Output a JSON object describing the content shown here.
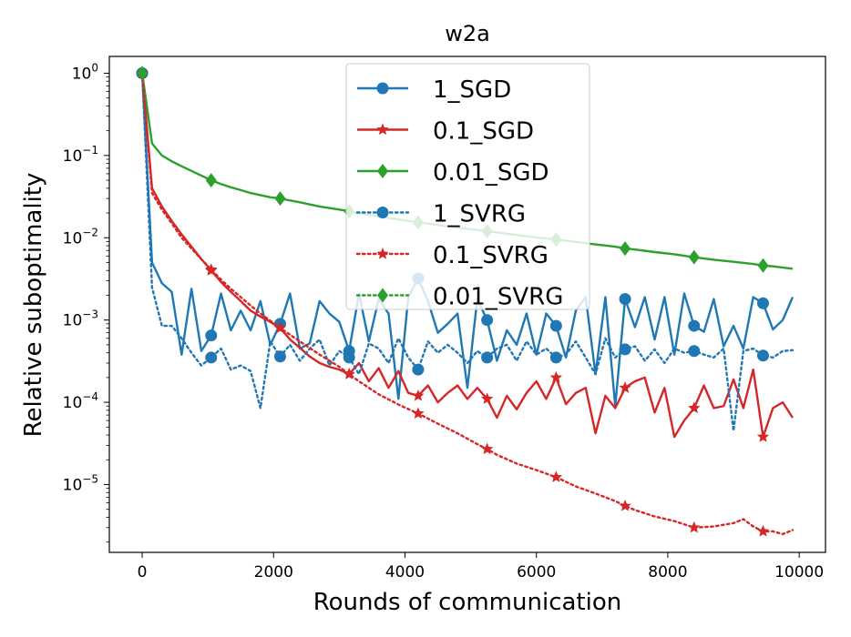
{
  "chart_data": {
    "type": "line",
    "title": "w2a",
    "xlabel": "Rounds of communication",
    "ylabel": "Relative suboptimality",
    "xscale": "linear",
    "yscale": "log",
    "xlim": [
      -500,
      10400
    ],
    "ylim": [
      1.5e-06,
      1.6
    ],
    "xticks": [
      0,
      2000,
      4000,
      6000,
      8000,
      10000
    ],
    "xtick_labels": [
      "0",
      "2000",
      "4000",
      "6000",
      "8000",
      "10000"
    ],
    "yticks": [
      {
        "value": 1,
        "base": "10",
        "exp": "0"
      },
      {
        "value": 0.1,
        "base": "10",
        "exp": "−1"
      },
      {
        "value": 0.01,
        "base": "10",
        "exp": "−2"
      },
      {
        "value": 0.001,
        "base": "10",
        "exp": "−3"
      },
      {
        "value": 0.0001,
        "base": "10",
        "exp": "−4"
      },
      {
        "value": 1e-05,
        "base": "10",
        "exp": "−5"
      }
    ],
    "legend_position": "upper-center",
    "series": [
      {
        "name": "1_SGD",
        "color": "#1f77b4",
        "style": "solid",
        "marker": "circle",
        "x": [
          0,
          150,
          300,
          450,
          600,
          750,
          900,
          1050,
          1200,
          1350,
          1500,
          1650,
          1800,
          1950,
          2100,
          2250,
          2400,
          2550,
          2700,
          2850,
          3000,
          3150,
          3300,
          3450,
          3600,
          3750,
          3900,
          4050,
          4200,
          4350,
          4500,
          4650,
          4800,
          4950,
          5100,
          5250,
          5400,
          5550,
          5700,
          5850,
          6000,
          6150,
          6300,
          6450,
          6600,
          6750,
          6900,
          7050,
          7200,
          7350,
          7500,
          7650,
          7800,
          7950,
          8100,
          8250,
          8400,
          8550,
          8700,
          8850,
          9000,
          9150,
          9300,
          9450,
          9600,
          9750,
          9900
        ],
        "y": [
          1,
          0.005,
          0.0028,
          0.0022,
          0.00038,
          0.0024,
          0.00042,
          0.00065,
          0.0021,
          0.00075,
          0.0013,
          0.00075,
          0.0017,
          0.0005,
          0.0009,
          0.0021,
          0.00045,
          0.00052,
          0.0017,
          0.0012,
          0.00095,
          0.00042,
          0.0021,
          0.00055,
          0.0018,
          0.0012,
          0.00011,
          0.0019,
          0.0032,
          0.0017,
          0.0007,
          0.0009,
          0.0012,
          0.00015,
          0.0018,
          0.001,
          0.00032,
          0.00075,
          0.0005,
          0.0012,
          0.00038,
          0.0012,
          0.00085,
          0.00035,
          0.0013,
          0.0019,
          0.00022,
          0.0019,
          9e-05,
          0.0018,
          0.00082,
          0.0019,
          0.00058,
          0.0019,
          0.00038,
          0.0021,
          0.00085,
          0.00072,
          0.0018,
          0.00048,
          0.00085,
          0.00045,
          0.0019,
          0.0016,
          0.00077,
          0.001,
          0.0019
        ],
        "marker_x": [
          0,
          1050,
          2100,
          3150,
          4200,
          5250,
          6300,
          7350,
          8400,
          9450
        ]
      },
      {
        "name": "0.1_SGD",
        "color": "#d62728",
        "style": "solid",
        "marker": "star",
        "x": [
          0,
          150,
          300,
          450,
          600,
          750,
          900,
          1050,
          1200,
          1350,
          1500,
          1650,
          1800,
          1950,
          2100,
          2250,
          2400,
          2550,
          2700,
          2850,
          3000,
          3150,
          3300,
          3450,
          3600,
          3750,
          3900,
          4050,
          4200,
          4350,
          4500,
          4650,
          4800,
          4950,
          5100,
          5250,
          5400,
          5550,
          5700,
          5850,
          6000,
          6150,
          6300,
          6450,
          6600,
          6750,
          6900,
          7050,
          7200,
          7350,
          7500,
          7650,
          7800,
          7950,
          8100,
          8250,
          8400,
          8550,
          8700,
          8850,
          9000,
          9150,
          9300,
          9450,
          9600,
          9750,
          9900
        ],
        "y": [
          1,
          0.04,
          0.024,
          0.016,
          0.011,
          0.0078,
          0.0055,
          0.004,
          0.0029,
          0.0022,
          0.0017,
          0.0013,
          0.0011,
          0.00095,
          0.0008,
          0.00058,
          0.00046,
          0.00036,
          0.0003,
          0.00027,
          0.00025,
          0.00022,
          0.0003,
          0.00018,
          0.00026,
          0.00015,
          0.00024,
          0.00013,
          0.00012,
          0.00016,
          0.0001,
          0.00013,
          0.00016,
          0.00011,
          0.00015,
          0.00011,
          6.5e-05,
          0.00012,
          8.2e-05,
          0.00013,
          0.00018,
          0.00011,
          0.0002,
          9.5e-05,
          0.00013,
          0.00015,
          4.2e-05,
          0.00012,
          8.5e-05,
          0.00015,
          0.00018,
          0.0002,
          7.5e-05,
          0.00015,
          3.8e-05,
          6e-05,
          8.5e-05,
          0.00016,
          8.5e-05,
          9e-05,
          0.00019,
          8.5e-05,
          0.00025,
          3.8e-05,
          8.5e-05,
          0.0001,
          6.5e-05
        ],
        "marker_x": [
          0,
          1050,
          2100,
          3150,
          4200,
          5250,
          6300,
          7350,
          8400,
          9450
        ]
      },
      {
        "name": "0.01_SGD",
        "color": "#2ca02c",
        "style": "solid",
        "marker": "diamond",
        "x": [
          0,
          150,
          300,
          450,
          600,
          750,
          900,
          1050,
          1200,
          1350,
          1500,
          1650,
          1800,
          1950,
          2100,
          2400,
          2700,
          3000,
          3150,
          3300,
          3600,
          3900,
          4200,
          4500,
          4800,
          5100,
          5250,
          5400,
          5700,
          6000,
          6300,
          6600,
          6900,
          7200,
          7350,
          7500,
          7800,
          8100,
          8400,
          8700,
          9000,
          9300,
          9450,
          9600,
          9900
        ],
        "y": [
          1,
          0.14,
          0.1,
          0.085,
          0.074,
          0.065,
          0.057,
          0.05,
          0.045,
          0.041,
          0.038,
          0.035,
          0.033,
          0.031,
          0.03,
          0.027,
          0.024,
          0.022,
          0.021,
          0.0199,
          0.0182,
          0.0167,
          0.0154,
          0.0143,
          0.0133,
          0.0124,
          0.012,
          0.0116,
          0.0108,
          0.0101,
          0.0095,
          0.0089,
          0.0083,
          0.0078,
          0.0074,
          0.0072,
          0.0067,
          0.0063,
          0.0058,
          0.0054,
          0.0051,
          0.0048,
          0.0046,
          0.0045,
          0.0042
        ],
        "marker_x": [
          0,
          1050,
          2100,
          3150,
          4200,
          5250,
          6300,
          7350,
          8400,
          9450
        ]
      },
      {
        "name": "1_SVRG",
        "color": "#1f77b4",
        "style": "dotted",
        "marker": "circle",
        "x": [
          0,
          150,
          300,
          450,
          600,
          750,
          900,
          1050,
          1200,
          1350,
          1500,
          1650,
          1800,
          1950,
          2100,
          2250,
          2400,
          2550,
          2700,
          2850,
          3000,
          3150,
          3300,
          3450,
          3600,
          3750,
          3900,
          4050,
          4200,
          4350,
          4500,
          4650,
          4800,
          4950,
          5100,
          5250,
          5400,
          5550,
          5700,
          5850,
          6000,
          6150,
          6300,
          6450,
          6600,
          6750,
          6900,
          7050,
          7200,
          7350,
          7500,
          7650,
          7800,
          7950,
          8100,
          8250,
          8400,
          8550,
          8700,
          8850,
          9000,
          9150,
          9300,
          9450,
          9600,
          9750,
          9900
        ],
        "y": [
          1,
          0.0025,
          0.00085,
          0.00085,
          0.0006,
          0.0004,
          0.00028,
          0.00035,
          0.00045,
          0.00025,
          0.00028,
          0.00024,
          8.5e-05,
          0.00055,
          0.00036,
          0.0005,
          0.00032,
          0.00045,
          0.00058,
          0.00028,
          0.00042,
          0.00035,
          0.00022,
          0.00052,
          0.00045,
          0.0003,
          0.0006,
          0.00035,
          0.00025,
          0.00055,
          0.0004,
          0.0005,
          0.0004,
          0.0003,
          0.00042,
          0.00035,
          0.00045,
          0.0005,
          0.00032,
          0.00055,
          0.00038,
          0.00045,
          0.00035,
          0.00038,
          0.00055,
          0.00035,
          0.00022,
          0.0006,
          0.00035,
          0.00044,
          0.00048,
          0.00032,
          0.00044,
          0.0003,
          0.00045,
          0.0004,
          0.00042,
          0.00038,
          0.00035,
          0.00045,
          4.5e-05,
          0.00042,
          0.00045,
          0.00037,
          0.00035,
          0.00042,
          0.00043
        ],
        "marker_x": [
          0,
          1050,
          2100,
          3150,
          4200,
          5250,
          6300,
          7350,
          8400,
          9450
        ]
      },
      {
        "name": "0.1_SVRG",
        "color": "#d62728",
        "style": "dotted",
        "marker": "star",
        "x": [
          0,
          150,
          300,
          450,
          600,
          750,
          900,
          1050,
          1200,
          1350,
          1500,
          1650,
          1800,
          1950,
          2100,
          2400,
          2700,
          3000,
          3150,
          3300,
          3600,
          3900,
          4200,
          4500,
          4800,
          5100,
          5250,
          5400,
          5700,
          6000,
          6300,
          6600,
          6900,
          7200,
          7350,
          7500,
          7800,
          8100,
          8400,
          8700,
          9000,
          9150,
          9300,
          9450,
          9600,
          9750,
          9900
        ],
        "y": [
          1,
          0.035,
          0.022,
          0.015,
          0.01,
          0.0074,
          0.0055,
          0.0041,
          0.0031,
          0.0024,
          0.0019,
          0.0015,
          0.0012,
          0.00098,
          0.0008,
          0.00055,
          0.00038,
          0.00027,
          0.00022,
          0.00018,
          0.000125,
          9.4e-05,
          7.3e-05,
          5.5e-05,
          4.2e-05,
          3.1e-05,
          2.7e-05,
          2.3e-05,
          1.8e-05,
          1.5e-05,
          1.23e-05,
          9.5e-06,
          7.8e-06,
          6.3e-06,
          5.5e-06,
          4.9e-06,
          4.1e-06,
          3.6e-06,
          3e-06,
          3.1e-06,
          3.4e-06,
          3.8e-06,
          3.1e-06,
          2.7e-06,
          2.7e-06,
          2.5e-06,
          2.8e-06
        ],
        "marker_x": [
          0,
          1050,
          2100,
          3150,
          4200,
          5250,
          6300,
          7350,
          8400,
          9450
        ]
      },
      {
        "name": "0.01_SVRG",
        "color": "#2ca02c",
        "style": "dotted",
        "marker": "diamond",
        "x": [
          0
        ],
        "y": [
          1
        ],
        "marker_x": [
          0
        ]
      }
    ]
  }
}
